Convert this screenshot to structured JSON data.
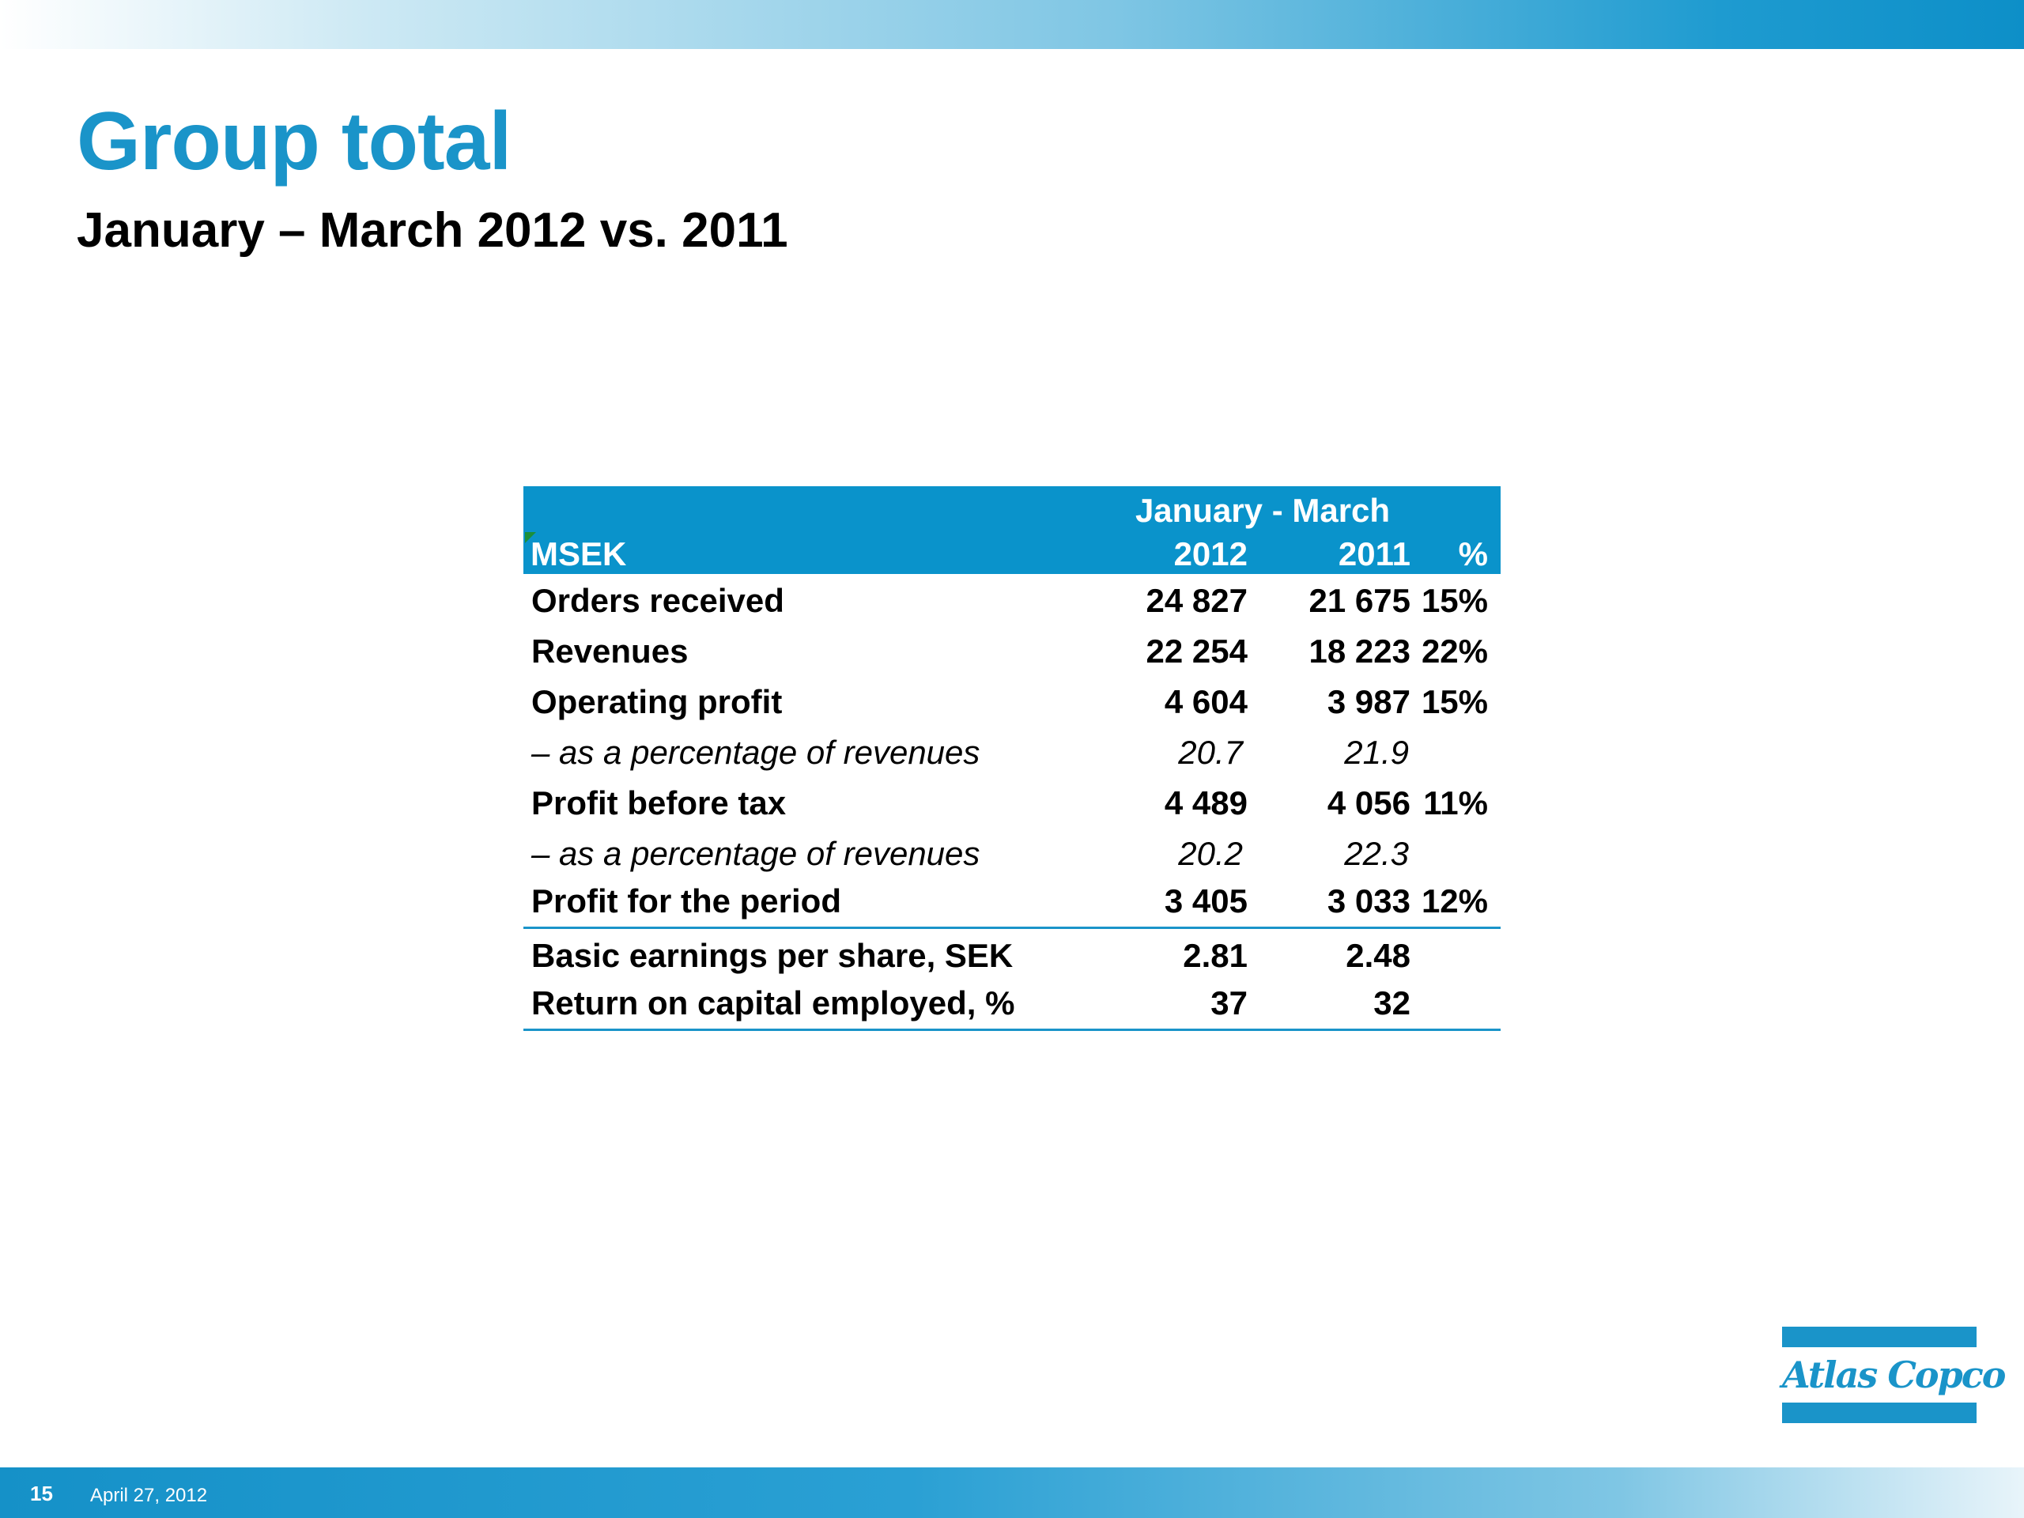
{
  "slide": {
    "title": "Group total",
    "subtitle": "January – March 2012 vs. 2011",
    "page_number": "15",
    "date": "April 27, 2012"
  },
  "logo": {
    "text": "Atlas Copco"
  },
  "table": {
    "period_header": "January - March",
    "unit_header": "MSEK",
    "col_2012": "2012",
    "col_2011": "2011",
    "col_pct": "%",
    "rows": [
      {
        "label": "Orders received",
        "v2012": "24 827",
        "v2011": "21 675",
        "pct": "15%"
      },
      {
        "label": "Revenues",
        "v2012": "22 254",
        "v2011": "18 223",
        "pct": "22%"
      },
      {
        "label": "Operating profit",
        "v2012": "4 604",
        "v2011": "3 987",
        "pct": "15%"
      },
      {
        "label": "– as a percentage of revenues",
        "v2012": "20.7",
        "v2011": "21.9",
        "pct": ""
      },
      {
        "label": "Profit before tax",
        "v2012": "4 489",
        "v2011": "4 056",
        "pct": "11%"
      },
      {
        "label": "– as a percentage of revenues",
        "v2012": "20.2",
        "v2011": "22.3",
        "pct": ""
      },
      {
        "label": "Profit for the period",
        "v2012": "3 405",
        "v2011": "3 033",
        "pct": "12%"
      },
      {
        "label": "Basic earnings per share, SEK",
        "v2012": "2.81",
        "v2011": "2.48",
        "pct": ""
      },
      {
        "label": "Return on capital employed, %",
        "v2012": "37",
        "v2011": "32",
        "pct": ""
      }
    ]
  },
  "colors": {
    "accent": "#1a94c9",
    "table_header": "#0a93cb",
    "text": "#000000"
  }
}
